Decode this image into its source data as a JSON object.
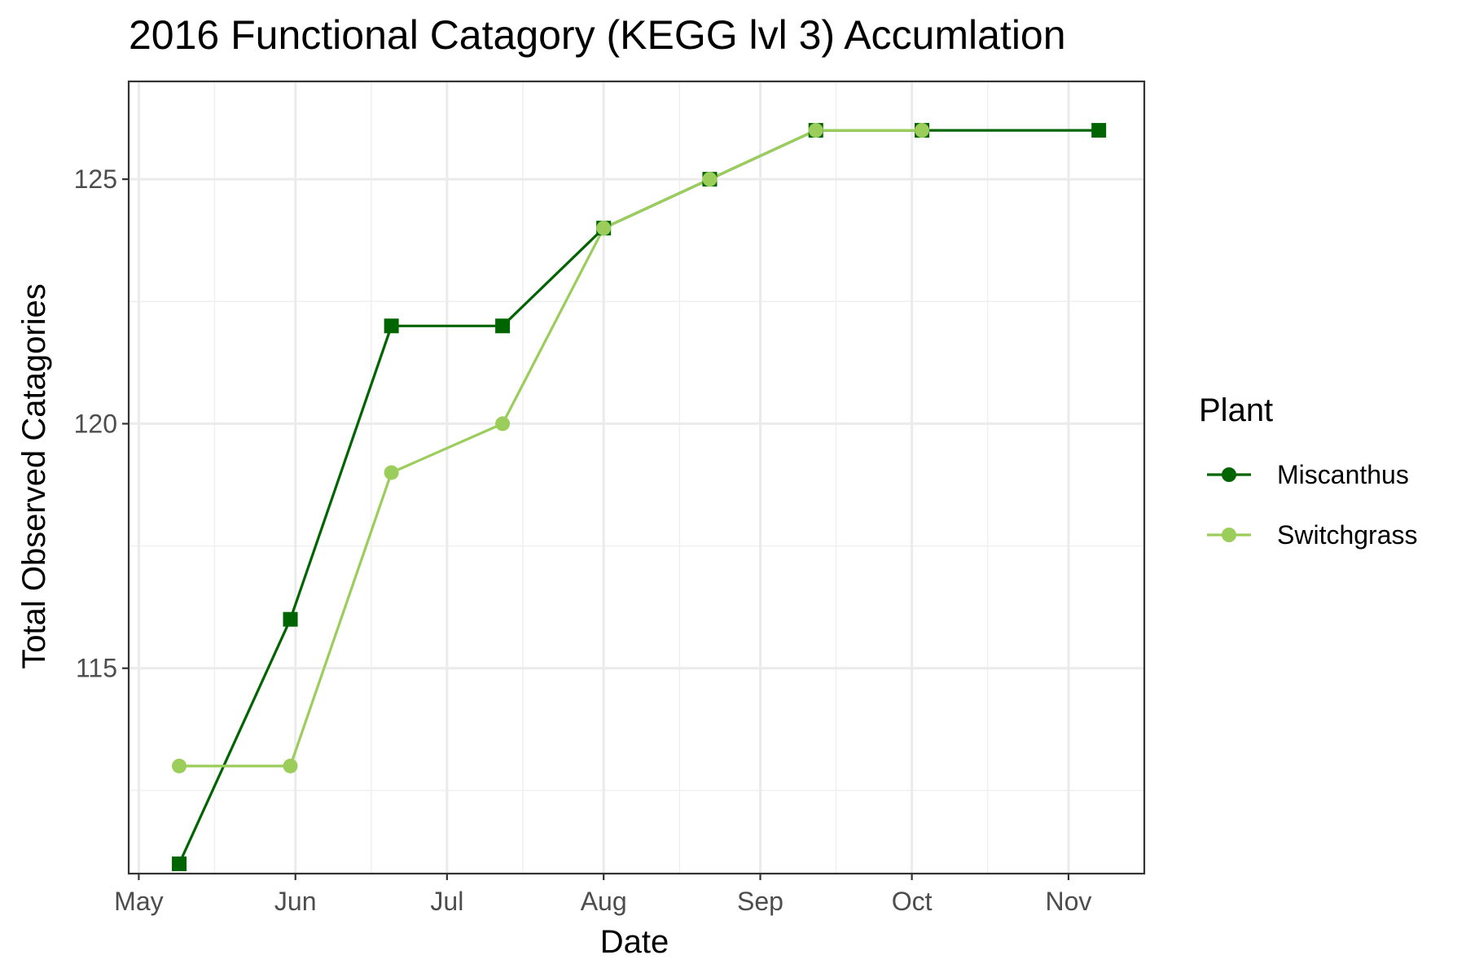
{
  "chart_data": {
    "type": "line",
    "title": "2016 Functional Catagory (KEGG lvl 3) Accumlation",
    "xlabel": "Date",
    "ylabel": "Total Observed Catagories",
    "x_axis": {
      "type": "date",
      "range": [
        "2016-04-29",
        "2016-11-16"
      ],
      "ticks": [
        {
          "date": "2016-05-01",
          "label": "May"
        },
        {
          "date": "2016-06-01",
          "label": "Jun"
        },
        {
          "date": "2016-07-01",
          "label": "Jul"
        },
        {
          "date": "2016-08-01",
          "label": "Aug"
        },
        {
          "date": "2016-09-01",
          "label": "Sep"
        },
        {
          "date": "2016-10-01",
          "label": "Oct"
        },
        {
          "date": "2016-11-01",
          "label": "Nov"
        }
      ],
      "minor_ticks": [
        "2016-05-16",
        "2016-06-16",
        "2016-07-16",
        "2016-08-16",
        "2016-09-16",
        "2016-10-16"
      ]
    },
    "y_axis": {
      "range": [
        110.8,
        127
      ],
      "ticks": [
        115,
        120,
        125
      ],
      "minor_ticks": [
        112.5,
        117.5,
        122.5
      ]
    },
    "grid": true,
    "legend": {
      "title": "Plant",
      "position": "right"
    },
    "series": [
      {
        "name": "Miscanthus",
        "color": "#006400",
        "marker": "square",
        "points": [
          {
            "x": "2016-05-09",
            "y": 111
          },
          {
            "x": "2016-05-31",
            "y": 116
          },
          {
            "x": "2016-06-20",
            "y": 122
          },
          {
            "x": "2016-07-12",
            "y": 122
          },
          {
            "x": "2016-08-01",
            "y": 124
          },
          {
            "x": "2016-08-22",
            "y": 125
          },
          {
            "x": "2016-09-12",
            "y": 126
          },
          {
            "x": "2016-10-03",
            "y": 126
          },
          {
            "x": "2016-11-07",
            "y": 126
          }
        ]
      },
      {
        "name": "Switchgrass",
        "color": "#9ACD5A",
        "marker": "circle",
        "points": [
          {
            "x": "2016-05-09",
            "y": 113
          },
          {
            "x": "2016-05-31",
            "y": 113
          },
          {
            "x": "2016-06-20",
            "y": 119
          },
          {
            "x": "2016-07-12",
            "y": 120
          },
          {
            "x": "2016-08-01",
            "y": 124
          },
          {
            "x": "2016-08-22",
            "y": 125
          },
          {
            "x": "2016-09-12",
            "y": 126
          },
          {
            "x": "2016-10-03",
            "y": 126
          }
        ]
      }
    ]
  }
}
